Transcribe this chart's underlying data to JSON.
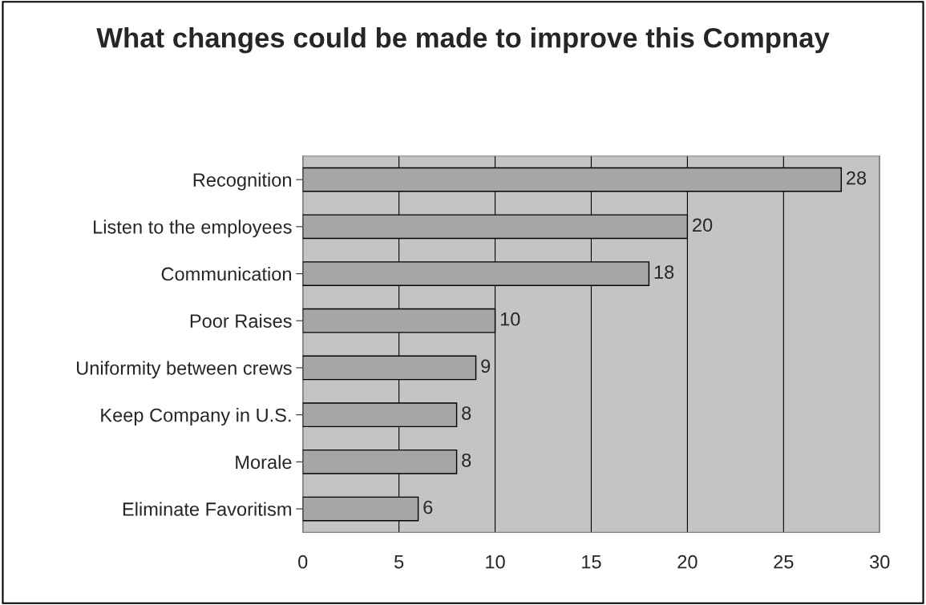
{
  "chart_data": {
    "type": "bar",
    "orientation": "horizontal",
    "title": "What changes could be made to improve this Compnay",
    "categories": [
      "Recognition",
      "Listen to the employees",
      "Communication",
      "Poor Raises",
      "Uniformity between crews",
      "Keep Company in U.S.",
      "Morale",
      "Eliminate Favoritism"
    ],
    "values": [
      28,
      20,
      18,
      10,
      9,
      8,
      8,
      6
    ],
    "color": "#a6a6a6",
    "xlim": [
      0,
      30
    ],
    "xticks": [
      0,
      5,
      10,
      15,
      20,
      25,
      30
    ],
    "grid": "x",
    "data_labels": true
  }
}
